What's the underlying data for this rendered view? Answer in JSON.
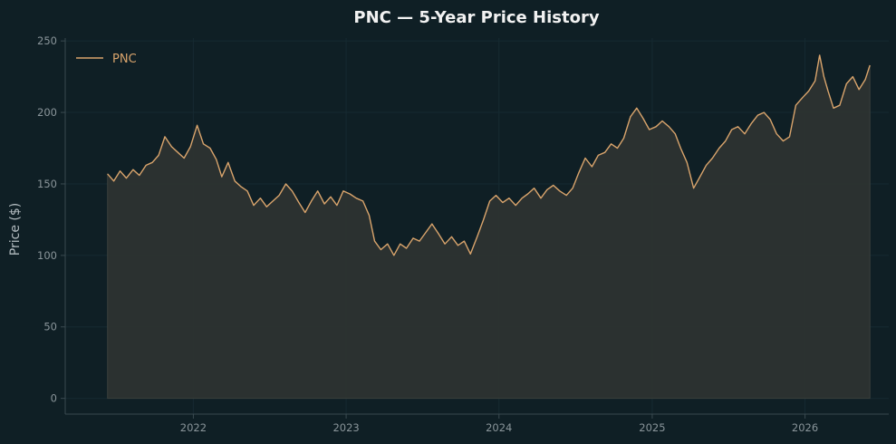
{
  "colors": {
    "background": "#0f1f25",
    "line": "#d9a46c",
    "fill": "#2e3331",
    "grid": "#162a31",
    "axis": "#3a4a50",
    "tick_text": "#8a959a",
    "title_text": "#f2f2f2",
    "label_text": "#b3bcc0"
  },
  "chart_data": {
    "type": "area",
    "title": "PNC — 5-Year Price History",
    "xlabel": "",
    "ylabel": "Price ($)",
    "ylim": [
      -11,
      252
    ],
    "xlim": [
      "2021-03-01",
      "2026-07-20"
    ],
    "yticks": [
      0,
      50,
      100,
      150,
      200,
      250
    ],
    "xticks": [
      {
        "date": "2022-01-01",
        "label": "2022"
      },
      {
        "date": "2023-01-01",
        "label": "2023"
      },
      {
        "date": "2024-01-01",
        "label": "2024"
      },
      {
        "date": "2025-01-01",
        "label": "2025"
      },
      {
        "date": "2026-01-01",
        "label": "2026"
      }
    ],
    "grid": true,
    "legend": "top-left",
    "series": [
      {
        "name": "PNC",
        "points": [
          [
            "2021-06-10",
            157
          ],
          [
            "2021-06-25",
            152
          ],
          [
            "2021-07-10",
            159
          ],
          [
            "2021-07-25",
            154
          ],
          [
            "2021-08-10",
            160
          ],
          [
            "2021-08-25",
            156
          ],
          [
            "2021-09-10",
            163
          ],
          [
            "2021-09-25",
            165
          ],
          [
            "2021-10-10",
            170
          ],
          [
            "2021-10-25",
            183
          ],
          [
            "2021-11-10",
            176
          ],
          [
            "2021-11-25",
            172
          ],
          [
            "2021-12-10",
            168
          ],
          [
            "2021-12-25",
            176
          ],
          [
            "2022-01-10",
            191
          ],
          [
            "2022-01-25",
            178
          ],
          [
            "2022-02-10",
            175
          ],
          [
            "2022-02-25",
            167
          ],
          [
            "2022-03-10",
            155
          ],
          [
            "2022-03-25",
            165
          ],
          [
            "2022-04-10",
            152
          ],
          [
            "2022-04-25",
            148
          ],
          [
            "2022-05-10",
            145
          ],
          [
            "2022-05-25",
            135
          ],
          [
            "2022-06-10",
            140
          ],
          [
            "2022-06-25",
            134
          ],
          [
            "2022-07-10",
            138
          ],
          [
            "2022-07-25",
            142
          ],
          [
            "2022-08-10",
            150
          ],
          [
            "2022-08-25",
            145
          ],
          [
            "2022-09-10",
            137
          ],
          [
            "2022-09-25",
            130
          ],
          [
            "2022-10-10",
            138
          ],
          [
            "2022-10-25",
            145
          ],
          [
            "2022-11-10",
            136
          ],
          [
            "2022-11-25",
            141
          ],
          [
            "2022-12-10",
            135
          ],
          [
            "2022-12-25",
            145
          ],
          [
            "2023-01-10",
            143
          ],
          [
            "2023-01-25",
            140
          ],
          [
            "2023-02-10",
            138
          ],
          [
            "2023-02-25",
            128
          ],
          [
            "2023-03-10",
            110
          ],
          [
            "2023-03-25",
            104
          ],
          [
            "2023-04-10",
            108
          ],
          [
            "2023-04-25",
            100
          ],
          [
            "2023-05-10",
            108
          ],
          [
            "2023-05-25",
            105
          ],
          [
            "2023-06-10",
            112
          ],
          [
            "2023-06-25",
            110
          ],
          [
            "2023-07-10",
            116
          ],
          [
            "2023-07-25",
            122
          ],
          [
            "2023-08-10",
            115
          ],
          [
            "2023-08-25",
            108
          ],
          [
            "2023-09-10",
            113
          ],
          [
            "2023-09-25",
            107
          ],
          [
            "2023-10-10",
            110
          ],
          [
            "2023-10-25",
            101
          ],
          [
            "2023-11-10",
            113
          ],
          [
            "2023-11-25",
            125
          ],
          [
            "2023-12-10",
            138
          ],
          [
            "2023-12-25",
            142
          ],
          [
            "2024-01-10",
            137
          ],
          [
            "2024-01-25",
            140
          ],
          [
            "2024-02-10",
            135
          ],
          [
            "2024-02-25",
            140
          ],
          [
            "2024-03-10",
            143
          ],
          [
            "2024-03-25",
            147
          ],
          [
            "2024-04-10",
            140
          ],
          [
            "2024-04-25",
            146
          ],
          [
            "2024-05-10",
            149
          ],
          [
            "2024-05-25",
            145
          ],
          [
            "2024-06-10",
            142
          ],
          [
            "2024-06-25",
            147
          ],
          [
            "2024-07-10",
            158
          ],
          [
            "2024-07-25",
            168
          ],
          [
            "2024-08-10",
            162
          ],
          [
            "2024-08-25",
            170
          ],
          [
            "2024-09-10",
            172
          ],
          [
            "2024-09-25",
            178
          ],
          [
            "2024-10-10",
            175
          ],
          [
            "2024-10-25",
            182
          ],
          [
            "2024-11-10",
            197
          ],
          [
            "2024-11-25",
            203
          ],
          [
            "2024-12-10",
            196
          ],
          [
            "2024-12-25",
            188
          ],
          [
            "2025-01-10",
            190
          ],
          [
            "2025-01-25",
            194
          ],
          [
            "2025-02-10",
            190
          ],
          [
            "2025-02-25",
            185
          ],
          [
            "2025-03-10",
            175
          ],
          [
            "2025-03-25",
            165
          ],
          [
            "2025-04-10",
            147
          ],
          [
            "2025-04-25",
            155
          ],
          [
            "2025-05-10",
            163
          ],
          [
            "2025-05-25",
            168
          ],
          [
            "2025-06-10",
            175
          ],
          [
            "2025-06-25",
            180
          ],
          [
            "2025-07-10",
            188
          ],
          [
            "2025-07-25",
            190
          ],
          [
            "2025-08-10",
            185
          ],
          [
            "2025-08-25",
            192
          ],
          [
            "2025-09-10",
            198
          ],
          [
            "2025-09-25",
            200
          ],
          [
            "2025-10-10",
            195
          ],
          [
            "2025-10-25",
            185
          ],
          [
            "2025-11-10",
            180
          ],
          [
            "2025-11-25",
            183
          ],
          [
            "2025-12-10",
            205
          ],
          [
            "2025-12-25",
            210
          ],
          [
            "2026-01-10",
            215
          ],
          [
            "2026-01-25",
            222
          ],
          [
            "2026-02-05",
            240
          ],
          [
            "2026-02-15",
            225
          ],
          [
            "2026-02-25",
            215
          ],
          [
            "2026-03-10",
            203
          ],
          [
            "2026-03-25",
            205
          ],
          [
            "2026-04-10",
            220
          ],
          [
            "2026-04-25",
            225
          ],
          [
            "2026-05-10",
            216
          ],
          [
            "2026-05-25",
            223
          ],
          [
            "2026-06-05",
            233
          ]
        ]
      }
    ]
  }
}
